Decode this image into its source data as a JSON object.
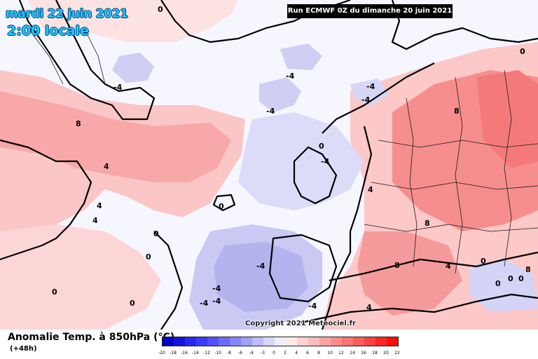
{
  "header": {
    "date": "mardi 22 juin 2021",
    "time": "2:00 locale",
    "run": "Run ECMWF 0Z du dimanche 20 juin 2021"
  },
  "copyright": "Copyright 2021 Meteociel.fr",
  "legend": {
    "field": "Anomalie Temp. à 850hPa (°C)",
    "lead": "(+48h)",
    "ticks": [
      "-20",
      "-18",
      "-16",
      "-14",
      "-12",
      "-10",
      "-8",
      "-6",
      "-4",
      "-3",
      "0",
      "2",
      "4",
      "6",
      "8",
      "10",
      "12",
      "14",
      "16",
      "18",
      "20",
      "22"
    ],
    "colors": [
      "#0000c8",
      "#1414dc",
      "#2828f0",
      "#3c3cf8",
      "#5050ff",
      "#6a6aff",
      "#8484ff",
      "#a0a0ff",
      "#bcbcff",
      "#d6d6ff",
      "#eeeeff",
      "#ffeaea",
      "#ffd2d2",
      "#ffbaba",
      "#ffa2a2",
      "#ff8a8a",
      "#ff7272",
      "#ff5a5a",
      "#ff4040",
      "#ff2626",
      "#ff0c0c"
    ]
  },
  "contour_labels": [
    "0",
    "0",
    "-4",
    "-4",
    "-4",
    "-4",
    "-4",
    "8",
    "8",
    "8",
    "8",
    "8",
    "-4",
    "4",
    "4",
    "4",
    "0",
    "0",
    "0",
    "-4",
    "-4",
    "-4",
    "-4",
    "-4",
    "4",
    "4",
    "0",
    "0",
    "0",
    "0",
    "0",
    "4",
    "0",
    "0"
  ],
  "colors": {
    "warm_light": "#fddcdc",
    "warm_mid": "#fbb4b4",
    "warm_strong": "#f58a8a",
    "cold_light": "#e4e4fb",
    "cold_mid": "#c8c8f6",
    "cold_strong": "#aaaaef",
    "neutral": "#f8f8ff"
  }
}
